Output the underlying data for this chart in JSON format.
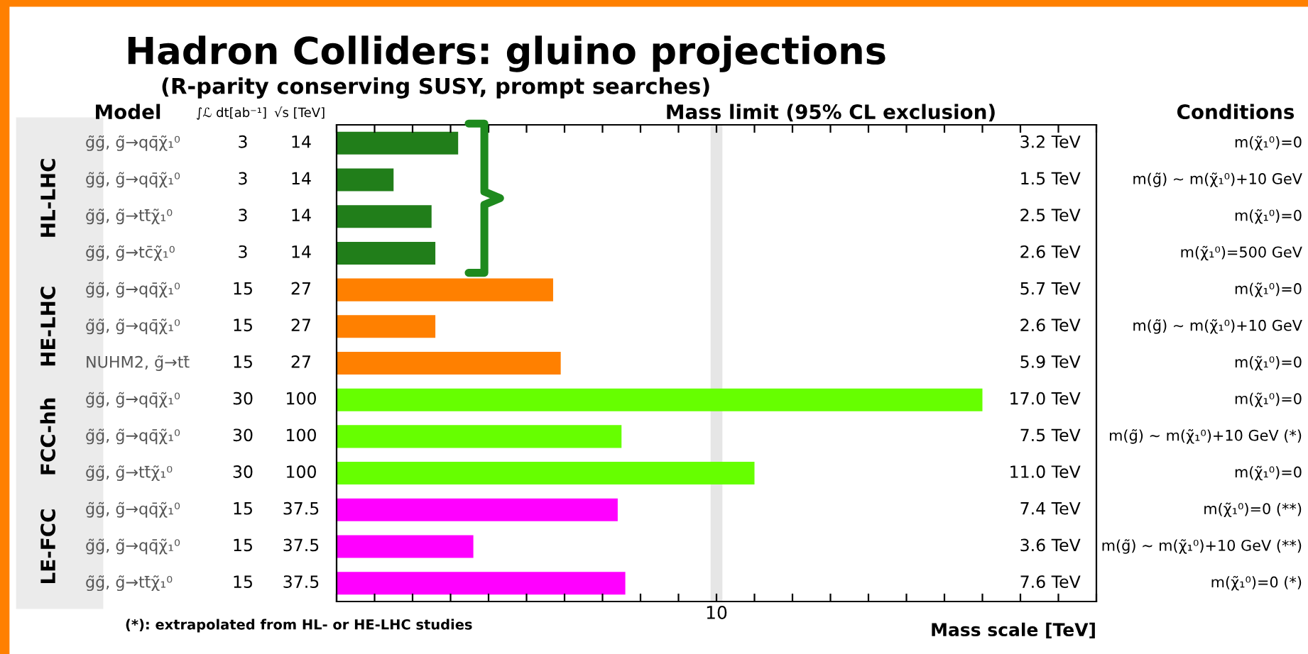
{
  "chart_data": {
    "type": "bar",
    "orientation": "horizontal",
    "title": "Hadron Colliders: gluino projections",
    "subtitle": "(R-parity conserving SUSY, prompt searches)",
    "xlabel": "Mass scale [TeV]",
    "categories": [
      "g̃g̃, g̃→qq̄χ̃₁⁰",
      "g̃g̃, g̃→qq̄χ̃₁⁰",
      "g̃g̃, g̃→tt̄χ̃₁⁰",
      "g̃g̃, g̃→tc̄χ̃₁⁰",
      "g̃g̃, g̃→qq̄χ̃₁⁰",
      "g̃g̃, g̃→qq̄χ̃₁⁰",
      "NUHM2, g̃→tt̄",
      "g̃g̃, g̃→qq̄χ̃₁⁰",
      "g̃g̃, g̃→qq̄χ̃₁⁰",
      "g̃g̃, g̃→tt̄χ̃₁⁰",
      "g̃g̃, g̃→qq̄χ̃₁⁰",
      "g̃g̃, g̃→qq̄χ̃₁⁰",
      "g̃g̃, g̃→tt̄χ̃₁⁰"
    ],
    "values": [
      3.2,
      1.5,
      2.5,
      2.6,
      5.7,
      2.6,
      5.9,
      17.0,
      7.5,
      11.0,
      7.4,
      3.6,
      7.6
    ],
    "colors": [
      "#217e1a",
      "#217e1a",
      "#217e1a",
      "#217e1a",
      "#ff8000",
      "#ff8000",
      "#ff8000",
      "#66ff00",
      "#66ff00",
      "#66ff00",
      "#ff00ff",
      "#ff00ff",
      "#ff00ff"
    ],
    "value_labels": [
      "3.2 TeV",
      "1.5 TeV",
      "2.5 TeV",
      "2.6 TeV",
      "5.7 TeV",
      "2.6 TeV",
      "5.9 TeV",
      "17.0 TeV",
      "7.5 TeV",
      "11.0 TeV",
      "7.4 TeV",
      "3.6 TeV",
      "7.6 TeV"
    ],
    "xlim": [
      0,
      20
    ],
    "xticks": [
      {
        "value": 0,
        "label": null
      },
      {
        "value": 1,
        "label": null
      },
      {
        "value": 2,
        "label": null
      },
      {
        "value": 3,
        "label": null
      },
      {
        "value": 4,
        "label": null
      },
      {
        "value": 5,
        "label": null
      },
      {
        "value": 6,
        "label": null
      },
      {
        "value": 7,
        "label": null
      },
      {
        "value": 8,
        "label": null
      },
      {
        "value": 9,
        "label": null
      },
      10,
      {
        "value": 11,
        "label": null
      },
      {
        "value": 12,
        "label": null
      },
      {
        "value": 13,
        "label": null
      },
      {
        "value": 14,
        "label": null
      },
      {
        "value": 15,
        "label": null
      },
      {
        "value": 16,
        "label": null
      },
      {
        "value": 17,
        "label": null
      },
      {
        "value": 18,
        "label": null
      },
      {
        "value": 19,
        "label": null
      },
      {
        "value": 20,
        "label": null
      }
    ],
    "ref_lines": [
      {
        "axis": "x",
        "value": 10,
        "color": "#e6e6e6"
      }
    ],
    "grid": false,
    "legend": false,
    "annotations": [
      "Model",
      "∫ℒ dt[ab⁻¹]",
      "√s [TeV]",
      "Mass limit (95% CL exclusion)",
      "Conditions",
      "HL-LHC",
      "HE-LHC",
      "FCC-hh",
      "LE-FCC",
      "3",
      "14",
      "m(χ̃₁⁰)=0",
      "3",
      "14",
      "m(g̃) ~ m(χ̃₁⁰)+10 GeV",
      "3",
      "14",
      "m(χ̃₁⁰)=0",
      "3",
      "14",
      "m(χ̃₁⁰)=500 GeV",
      "15",
      "27",
      "m(χ̃₁⁰)=0",
      "15",
      "27",
      "m(g̃) ~ m(χ̃₁⁰)+10 GeV",
      "15",
      "27",
      "m(χ̃₁⁰)=0",
      "30",
      "100",
      "m(χ̃₁⁰)=0",
      "30",
      "100",
      "m(g̃) ~ m(χ̃₁⁰)+10 GeV (*)",
      "30",
      "100",
      "m(χ̃₁⁰)=0",
      "15",
      "37.5",
      "m(χ̃₁⁰)=0 (**)",
      "15",
      "37.5",
      "m(g̃) ~ m(χ̃₁⁰)+10 GeV (**)",
      "15",
      "37.5",
      "m(χ̃₁⁰)=0 (*)",
      "(*): extrapolated from HL- or HE-LHC studies"
    ]
  }
}
